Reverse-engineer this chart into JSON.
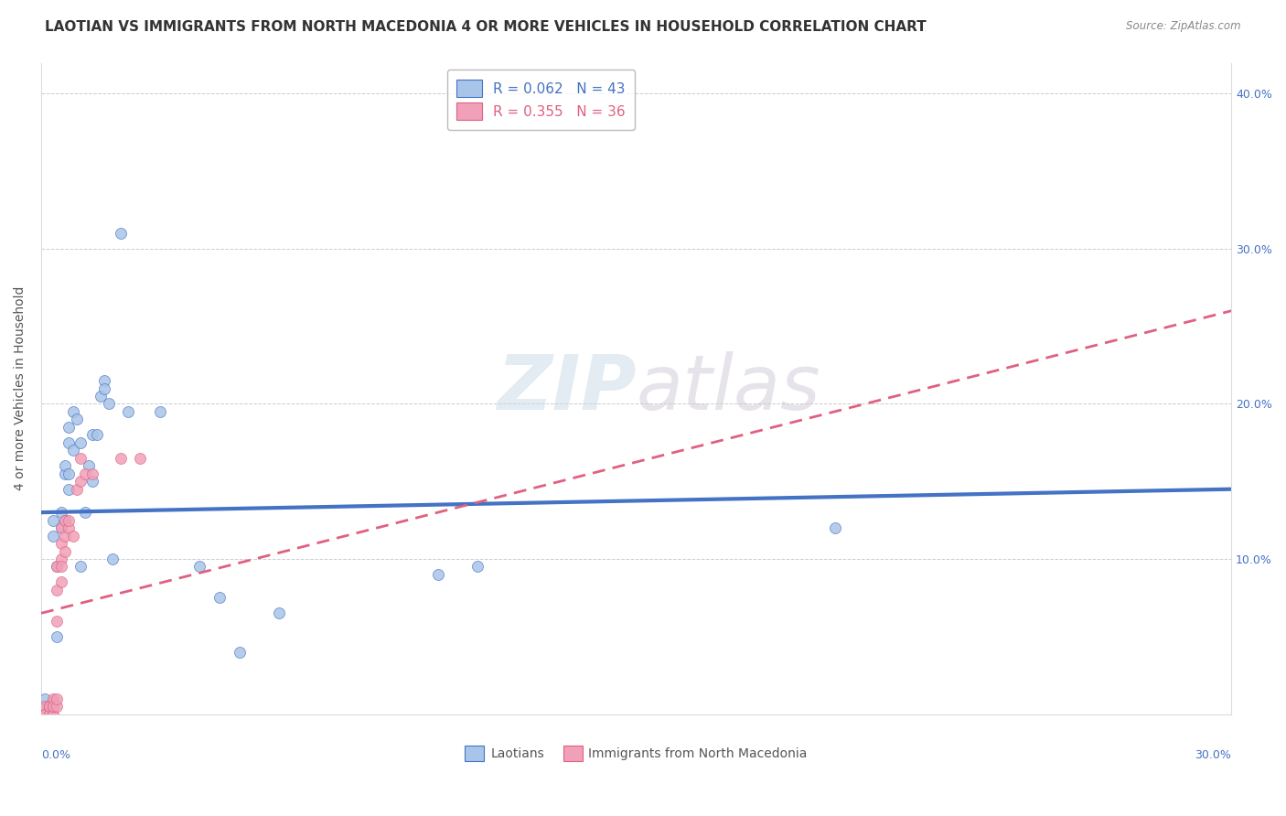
{
  "title": "LAOTIAN VS IMMIGRANTS FROM NORTH MACEDONIA 4 OR MORE VEHICLES IN HOUSEHOLD CORRELATION CHART",
  "source": "Source: ZipAtlas.com",
  "ylabel": "4 or more Vehicles in Household",
  "xlim": [
    0.0,
    0.3
  ],
  "ylim": [
    0.0,
    0.42
  ],
  "legend_blue_r": "R = 0.062",
  "legend_blue_n": "N = 43",
  "legend_pink_r": "R = 0.355",
  "legend_pink_n": "N = 36",
  "scatter_blue": [
    [
      0.001,
      0.005
    ],
    [
      0.001,
      0.01
    ],
    [
      0.002,
      0.0
    ],
    [
      0.002,
      0.005
    ],
    [
      0.003,
      0.008
    ],
    [
      0.003,
      0.115
    ],
    [
      0.003,
      0.125
    ],
    [
      0.004,
      0.05
    ],
    [
      0.004,
      0.095
    ],
    [
      0.005,
      0.12
    ],
    [
      0.005,
      0.13
    ],
    [
      0.006,
      0.125
    ],
    [
      0.006,
      0.155
    ],
    [
      0.006,
      0.16
    ],
    [
      0.007,
      0.145
    ],
    [
      0.007,
      0.155
    ],
    [
      0.007,
      0.175
    ],
    [
      0.007,
      0.185
    ],
    [
      0.008,
      0.17
    ],
    [
      0.008,
      0.195
    ],
    [
      0.009,
      0.19
    ],
    [
      0.01,
      0.175
    ],
    [
      0.01,
      0.095
    ],
    [
      0.011,
      0.13
    ],
    [
      0.012,
      0.16
    ],
    [
      0.013,
      0.15
    ],
    [
      0.013,
      0.18
    ],
    [
      0.014,
      0.18
    ],
    [
      0.015,
      0.205
    ],
    [
      0.016,
      0.215
    ],
    [
      0.016,
      0.21
    ],
    [
      0.017,
      0.2
    ],
    [
      0.018,
      0.1
    ],
    [
      0.02,
      0.31
    ],
    [
      0.022,
      0.195
    ],
    [
      0.03,
      0.195
    ],
    [
      0.04,
      0.095
    ],
    [
      0.045,
      0.075
    ],
    [
      0.05,
      0.04
    ],
    [
      0.06,
      0.065
    ],
    [
      0.1,
      0.09
    ],
    [
      0.11,
      0.095
    ],
    [
      0.2,
      0.12
    ]
  ],
  "scatter_pink": [
    [
      0.001,
      0.005
    ],
    [
      0.001,
      0.0
    ],
    [
      0.001,
      0.0
    ],
    [
      0.002,
      0.0
    ],
    [
      0.002,
      0.005
    ],
    [
      0.002,
      0.005
    ],
    [
      0.002,
      0.0
    ],
    [
      0.002,
      0.005
    ],
    [
      0.003,
      0.0
    ],
    [
      0.003,
      0.0
    ],
    [
      0.003,
      0.005
    ],
    [
      0.003,
      0.01
    ],
    [
      0.003,
      0.005
    ],
    [
      0.004,
      0.005
    ],
    [
      0.004,
      0.01
    ],
    [
      0.004,
      0.06
    ],
    [
      0.004,
      0.08
    ],
    [
      0.004,
      0.095
    ],
    [
      0.005,
      0.1
    ],
    [
      0.005,
      0.095
    ],
    [
      0.005,
      0.085
    ],
    [
      0.005,
      0.11
    ],
    [
      0.005,
      0.12
    ],
    [
      0.006,
      0.105
    ],
    [
      0.006,
      0.115
    ],
    [
      0.006,
      0.125
    ],
    [
      0.007,
      0.12
    ],
    [
      0.007,
      0.125
    ],
    [
      0.008,
      0.115
    ],
    [
      0.009,
      0.145
    ],
    [
      0.01,
      0.15
    ],
    [
      0.01,
      0.165
    ],
    [
      0.011,
      0.155
    ],
    [
      0.013,
      0.155
    ],
    [
      0.02,
      0.165
    ],
    [
      0.025,
      0.165
    ]
  ],
  "trendline_blue_color": "#4472c4",
  "trendline_pink_color": "#e06080",
  "scatter_blue_color": "#a8c4e8",
  "scatter_pink_color": "#f0a0b8",
  "background_color": "#ffffff",
  "grid_color": "#cccccc",
  "watermark_part1": "ZIP",
  "watermark_part2": "atlas",
  "title_fontsize": 11,
  "axis_label_fontsize": 10,
  "tick_fontsize": 9,
  "blue_trendline_start_y": 0.13,
  "blue_trendline_end_y": 0.145,
  "pink_trendline_start_y": 0.065,
  "pink_trendline_end_y": 0.26
}
